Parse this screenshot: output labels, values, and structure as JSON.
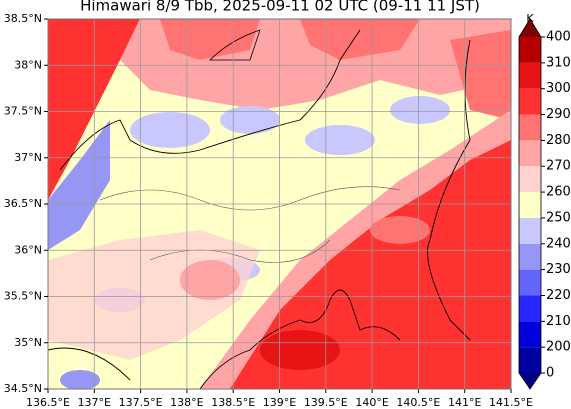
{
  "title": "Himawari 8/9 Tbb, 2025-09-11 02 UTC (09-11 11 JST)",
  "map": {
    "xlim": [
      136.5,
      141.5
    ],
    "ylim": [
      34.5,
      38.5
    ],
    "xticks": [
      {
        "value": 136.5,
        "label": "136.5°E"
      },
      {
        "value": 137,
        "label": "137°E"
      },
      {
        "value": 137.5,
        "label": "137.5°E"
      },
      {
        "value": 138,
        "label": "138°E"
      },
      {
        "value": 138.5,
        "label": "138.5°E"
      },
      {
        "value": 139,
        "label": "139°E"
      },
      {
        "value": 139.5,
        "label": "139.5°E"
      },
      {
        "value": 140,
        "label": "140°E"
      },
      {
        "value": 140.5,
        "label": "140.5°E"
      },
      {
        "value": 141,
        "label": "141°E"
      },
      {
        "value": 141.5,
        "label": "141.5°E"
      }
    ],
    "yticks": [
      {
        "value": 34.5,
        "label": "34.5°N"
      },
      {
        "value": 35,
        "label": "35°N"
      },
      {
        "value": 35.5,
        "label": "35.5°N"
      },
      {
        "value": 36,
        "label": "36°N"
      },
      {
        "value": 36.5,
        "label": "36.5°N"
      },
      {
        "value": 37,
        "label": "37°N"
      },
      {
        "value": 37.5,
        "label": "37.5°N"
      },
      {
        "value": 38,
        "label": "38°N"
      },
      {
        "value": 38.5,
        "label": "38.5°N"
      }
    ],
    "grid": true
  },
  "colorbar": {
    "unit": "K",
    "levels": [
      0,
      200,
      210,
      220,
      230,
      240,
      250,
      260,
      270,
      280,
      290,
      300,
      310,
      400
    ],
    "colors": [
      "#0000a0",
      "#0000d8",
      "#2828ff",
      "#6464ff",
      "#9696f5",
      "#c8c8ff",
      "#ffffc8",
      "#ffd2d2",
      "#ffa5a5",
      "#ff7373",
      "#ff3232",
      "#e61414",
      "#b40000"
    ],
    "under_color": "#000080",
    "over_color": "#800000"
  }
}
